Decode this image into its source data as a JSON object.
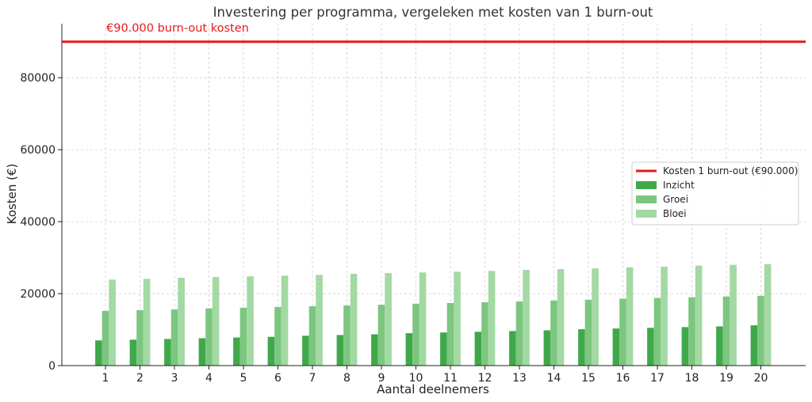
{
  "chart_data": {
    "type": "bar",
    "title": "Investering per programma, vergeleken met kosten van 1 burn-out",
    "xlabel": "Aantal deelnemers",
    "ylabel": "Kosten (€)",
    "categories": [
      "1",
      "2",
      "3",
      "4",
      "5",
      "6",
      "7",
      "8",
      "9",
      "10",
      "11",
      "12",
      "13",
      "14",
      "15",
      "16",
      "17",
      "18",
      "19",
      "20"
    ],
    "series": [
      {
        "name": "Inzicht",
        "color": "#3fa94a",
        "values": [
          7000,
          7200,
          7400,
          7600,
          7800,
          8000,
          8300,
          8500,
          8700,
          9000,
          9200,
          9400,
          9600,
          9800,
          10100,
          10300,
          10500,
          10700,
          10900,
          11200
        ]
      },
      {
        "name": "Groei",
        "color": "#7cc67f",
        "values": [
          15200,
          15400,
          15600,
          15900,
          16100,
          16300,
          16500,
          16700,
          16900,
          17200,
          17400,
          17600,
          17800,
          18100,
          18300,
          18600,
          18800,
          19000,
          19200,
          19400
        ]
      },
      {
        "name": "Bloei",
        "color": "#a3d9a3",
        "values": [
          23900,
          24100,
          24400,
          24600,
          24800,
          25000,
          25200,
          25500,
          25700,
          25900,
          26100,
          26300,
          26600,
          26800,
          27000,
          27300,
          27500,
          27800,
          28000,
          28200
        ]
      }
    ],
    "reference_line": {
      "name": "Kosten 1 burn-out (€90.000)",
      "value": 90000,
      "color": "#e31a1c",
      "annotation": "€90.000 burn-out kosten"
    },
    "ylim": [
      0,
      95000
    ],
    "yticks": [
      0,
      20000,
      40000,
      60000,
      80000
    ],
    "grid": true,
    "legend_position": "center-right"
  }
}
